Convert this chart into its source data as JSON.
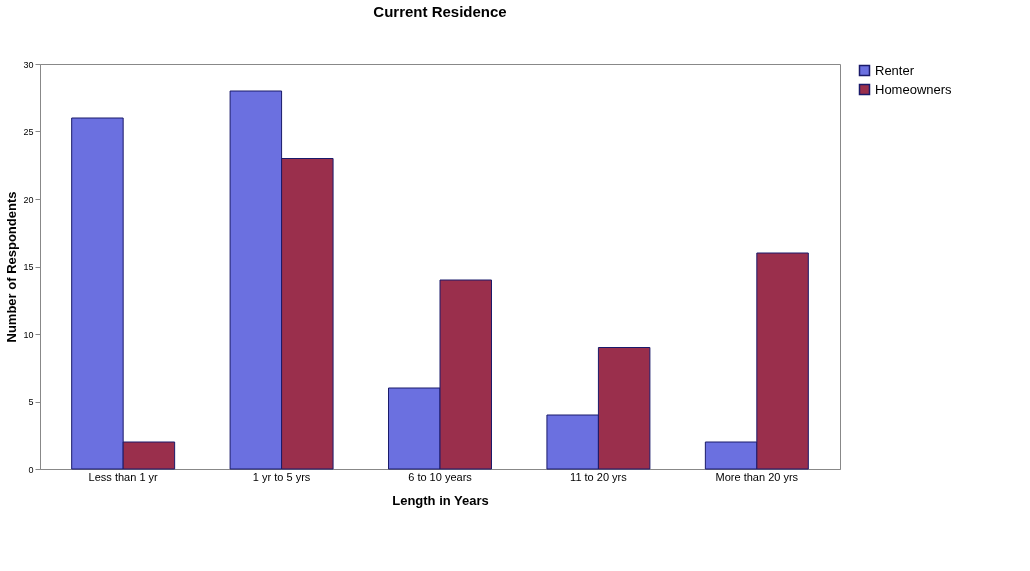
{
  "chart_data": {
    "type": "bar",
    "title": "Current Residence",
    "xlabel": "Length in Years",
    "ylabel": "Number of Respondents",
    "categories": [
      "Less than 1 yr",
      "1 yr to 5 yrs",
      "6 to 10 years",
      "11 to 20 yrs",
      "More than 20 yrs"
    ],
    "series": [
      {
        "name": "Renter",
        "color": "#6b70e0",
        "values": [
          26,
          28,
          6,
          4,
          2
        ]
      },
      {
        "name": "Homeowners",
        "color": "#9a2f4c",
        "values": [
          2,
          23,
          14,
          9,
          16
        ]
      }
    ],
    "ylim": [
      0,
      30
    ],
    "yticks": [
      0,
      5,
      10,
      15,
      20,
      25,
      30
    ],
    "grid": false,
    "legend": "right"
  }
}
